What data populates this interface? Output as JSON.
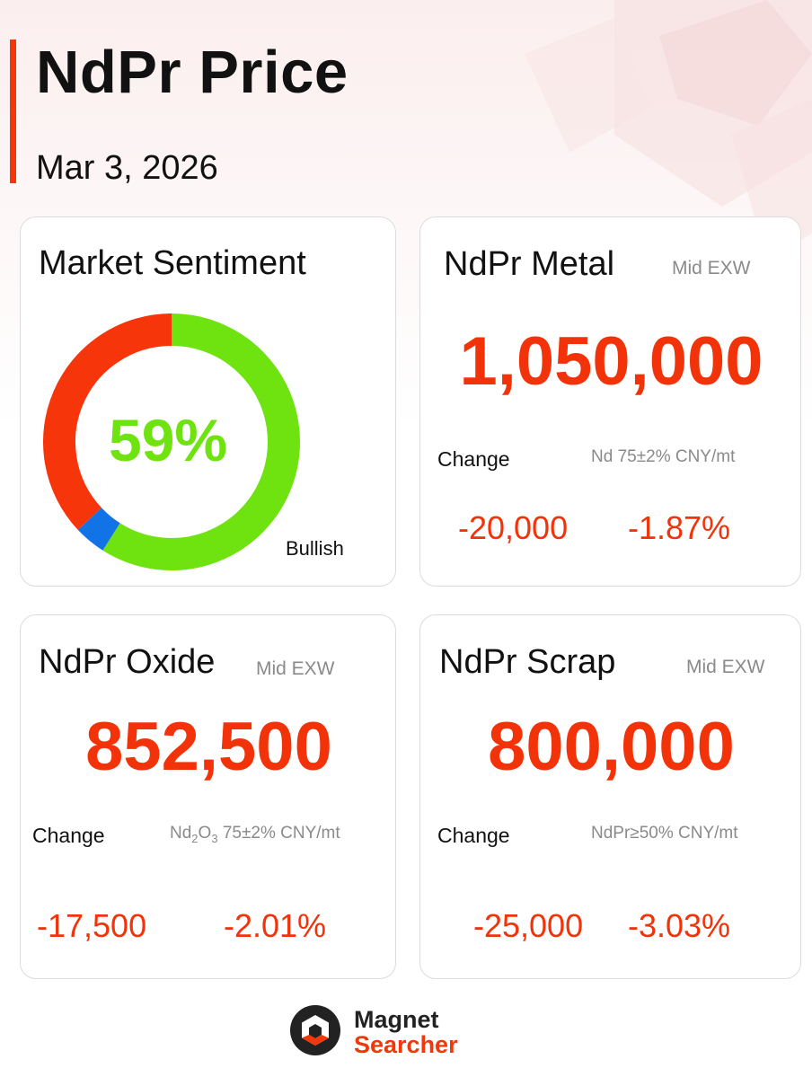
{
  "header": {
    "title": "NdPr Price",
    "date": "Mar 3, 2026"
  },
  "sentiment": {
    "title": "Market Sentiment",
    "percent_label": "59%",
    "label": "Bullish",
    "segments": [
      {
        "name": "bullish",
        "fraction": 0.59,
        "color": "#6ee30f"
      },
      {
        "name": "neutral",
        "fraction": 0.04,
        "color": "#1273e6"
      },
      {
        "name": "bearish",
        "fraction": 0.37,
        "color": "#f7350b"
      }
    ]
  },
  "cards": {
    "metal": {
      "title": "NdPr Metal",
      "tag": "Mid  EXW",
      "price": "1,050,000",
      "change_label": "Change",
      "unit": "Nd 75±2% CNY/mt",
      "change_abs": "-20,000",
      "change_pct": "-1.87%"
    },
    "oxide": {
      "title": "NdPr Oxide",
      "tag": "Mid  EXW",
      "price": "852,500",
      "change_label": "Change",
      "unit_prefix": "Nd",
      "unit_sub1": "2",
      "unit_mid": "O",
      "unit_sub2": "3",
      "unit_suffix": " 75±2% CNY/mt",
      "change_abs": "-17,500",
      "change_pct": "-2.01%"
    },
    "scrap": {
      "title": "NdPr Scrap",
      "tag": "Mid  EXW",
      "price": "800,000",
      "change_label": "Change",
      "unit": "NdPr≥50% CNY/mt",
      "change_abs": "-25,000",
      "change_pct": "-3.03%"
    }
  },
  "brand": {
    "line1": "Magnet",
    "line2": "Searcher",
    "colors": {
      "dark": "#222222",
      "accent": "#f2380b"
    }
  },
  "colors": {
    "accent": "#f2380b",
    "bullish": "#6ee30f"
  }
}
